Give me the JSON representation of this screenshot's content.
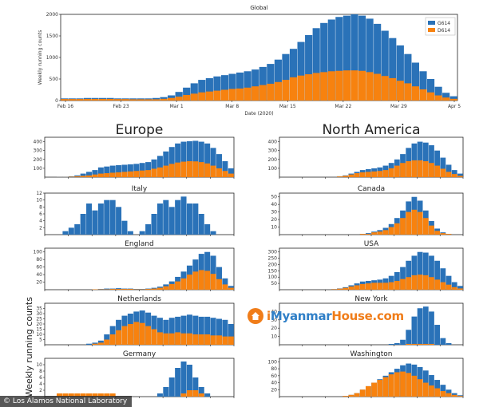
{
  "colors": {
    "g614": "#2a72b8",
    "d614": "#f7820f"
  },
  "ylabel_left": "Weekly running counts",
  "credit": "© Los Alamos National Laboratory",
  "watermark": {
    "i": "i",
    "myanmar": "Myanmar",
    "house": "House.com"
  },
  "chart_data": [
    {
      "type": "bar",
      "id": "global",
      "title": "Global",
      "xlabel": "Date (2020)",
      "ylabel": "Weekly running counts",
      "ylim": [
        0,
        2000
      ],
      "yticks": [
        "0",
        "500",
        "1000",
        "1500",
        "2000"
      ],
      "xticks": [
        "Feb 16",
        "Feb 23",
        "Mar 1",
        "Mar 8",
        "Mar 15",
        "Mar 22",
        "Mar 29",
        "Apr 5"
      ],
      "legend": [
        "G614",
        "D614"
      ],
      "legend_position": "top-right",
      "series": [
        {
          "values": [
            50,
            50,
            50,
            60,
            60,
            60,
            60,
            50,
            50,
            50,
            50,
            50,
            60,
            80,
            120,
            200,
            300,
            400,
            480,
            520,
            560,
            590,
            620,
            650,
            680,
            720,
            780,
            850,
            950,
            1080,
            1200,
            1360,
            1520,
            1680,
            1800,
            1880,
            1940,
            1970,
            2000,
            1970,
            1900,
            1780,
            1620,
            1450,
            1280,
            1080,
            880,
            680,
            500,
            320,
            180,
            100
          ]
        },
        {
          "values": [
            35,
            35,
            35,
            38,
            38,
            38,
            38,
            34,
            34,
            30,
            30,
            30,
            30,
            40,
            60,
            90,
            130,
            160,
            190,
            210,
            230,
            250,
            270,
            280,
            300,
            330,
            360,
            390,
            430,
            480,
            540,
            580,
            610,
            640,
            660,
            680,
            690,
            700,
            700,
            690,
            660,
            620,
            570,
            520,
            460,
            400,
            330,
            260,
            190,
            120,
            70,
            40
          ]
        }
      ]
    },
    {
      "type": "bar",
      "id": "europe",
      "title": "Europe",
      "ylim": [
        0,
        450
      ],
      "yticks": [
        "100",
        "200",
        "300",
        "400"
      ],
      "series": [
        {
          "values": [
            0,
            0,
            2,
            5,
            10,
            20,
            40,
            60,
            80,
            110,
            120,
            130,
            135,
            140,
            145,
            150,
            160,
            170,
            200,
            240,
            290,
            340,
            380,
            400,
            405,
            410,
            400,
            380,
            330,
            260,
            180,
            100
          ]
        },
        {
          "values": [
            0,
            0,
            1,
            2,
            5,
            10,
            15,
            20,
            30,
            40,
            45,
            50,
            55,
            60,
            65,
            70,
            75,
            80,
            95,
            110,
            130,
            150,
            165,
            175,
            180,
            178,
            170,
            155,
            130,
            100,
            70,
            40
          ]
        }
      ]
    },
    {
      "type": "bar",
      "id": "north-america",
      "title": "North America",
      "ylim": [
        0,
        450
      ],
      "yticks": [
        "100",
        "200",
        "300",
        "400"
      ],
      "series": [
        {
          "values": [
            0,
            0,
            0,
            0,
            0,
            0,
            0,
            0,
            0,
            0,
            10,
            20,
            40,
            60,
            80,
            90,
            100,
            110,
            130,
            160,
            200,
            260,
            330,
            380,
            400,
            390,
            360,
            300,
            220,
            140,
            80,
            40
          ]
        },
        {
          "values": [
            0,
            0,
            0,
            0,
            0,
            0,
            0,
            0,
            0,
            0,
            8,
            15,
            30,
            45,
            55,
            60,
            65,
            70,
            80,
            100,
            130,
            160,
            180,
            190,
            190,
            180,
            160,
            130,
            95,
            60,
            35,
            15
          ]
        }
      ]
    },
    {
      "type": "bar",
      "id": "italy",
      "title": "Italy",
      "ylim": [
        0,
        12
      ],
      "yticks": [
        "2",
        "4",
        "6",
        "8",
        "10",
        "12"
      ],
      "series": [
        {
          "values": [
            0,
            0,
            0,
            1,
            2,
            3,
            6,
            9,
            7,
            9,
            10,
            10,
            8,
            4,
            1,
            0,
            1,
            3,
            6,
            9,
            10,
            8,
            10,
            11,
            9,
            9,
            6,
            3,
            1,
            0,
            0,
            0
          ]
        },
        {
          "values": [
            0,
            0,
            0,
            0,
            0,
            0,
            0,
            0,
            0,
            0,
            0,
            0,
            0,
            0,
            0,
            0,
            0,
            0,
            0,
            0,
            0,
            0,
            0,
            0,
            0,
            0,
            0,
            0,
            0,
            0,
            0,
            0
          ]
        }
      ]
    },
    {
      "type": "bar",
      "id": "canada",
      "title": "Canada",
      "ylim": [
        0,
        55
      ],
      "yticks": [
        "10",
        "20",
        "30",
        "40",
        "50"
      ],
      "series": [
        {
          "values": [
            0,
            0,
            0,
            0,
            0,
            0,
            0,
            0,
            0,
            0,
            0,
            0,
            0,
            0,
            1,
            2,
            4,
            6,
            9,
            14,
            22,
            32,
            44,
            50,
            45,
            32,
            18,
            8,
            3,
            1,
            0,
            0
          ]
        },
        {
          "values": [
            0,
            0,
            0,
            0,
            0,
            0,
            0,
            0,
            0,
            0,
            0,
            0,
            0,
            0,
            1,
            1,
            3,
            4,
            6,
            10,
            15,
            22,
            30,
            33,
            30,
            22,
            12,
            5,
            2,
            1,
            0,
            0
          ]
        }
      ]
    },
    {
      "type": "bar",
      "id": "england",
      "title": "England",
      "ylim": [
        0,
        110
      ],
      "yticks": [
        "20",
        "40",
        "60",
        "80",
        "100"
      ],
      "series": [
        {
          "values": [
            0,
            0,
            0,
            0,
            0,
            0,
            0,
            0,
            1,
            2,
            3,
            3,
            4,
            3,
            3,
            2,
            2,
            3,
            5,
            8,
            14,
            22,
            34,
            48,
            64,
            80,
            95,
            100,
            90,
            60,
            30,
            10
          ]
        },
        {
          "values": [
            0,
            0,
            0,
            0,
            0,
            0,
            0,
            0,
            1,
            1,
            1,
            2,
            2,
            2,
            2,
            1,
            1,
            2,
            3,
            5,
            9,
            15,
            22,
            30,
            40,
            48,
            52,
            50,
            42,
            28,
            14,
            5
          ]
        }
      ]
    },
    {
      "type": "bar",
      "id": "usa",
      "title": "USA",
      "ylim": [
        0,
        330
      ],
      "yticks": [
        "50",
        "100",
        "150",
        "200",
        "250",
        "300"
      ],
      "series": [
        {
          "values": [
            0,
            0,
            0,
            0,
            0,
            0,
            0,
            0,
            0,
            5,
            10,
            20,
            35,
            50,
            65,
            70,
            75,
            80,
            90,
            110,
            140,
            180,
            230,
            270,
            300,
            295,
            270,
            230,
            170,
            110,
            60,
            30
          ]
        },
        {
          "values": [
            0,
            0,
            0,
            0,
            0,
            0,
            0,
            0,
            0,
            4,
            8,
            15,
            25,
            35,
            45,
            50,
            55,
            55,
            55,
            60,
            70,
            85,
            100,
            115,
            120,
            115,
            100,
            80,
            60,
            40,
            20,
            10
          ]
        }
      ]
    },
    {
      "type": "bar",
      "id": "netherlands",
      "title": "Netherlands",
      "ylim": [
        0,
        40
      ],
      "yticks": [
        "5",
        "10",
        "15",
        "20",
        "25",
        "30",
        "35"
      ],
      "series": [
        {
          "values": [
            0,
            0,
            0,
            0,
            0,
            0,
            0,
            1,
            2,
            4,
            10,
            18,
            24,
            28,
            30,
            32,
            33,
            31,
            28,
            26,
            24,
            26,
            27,
            28,
            29,
            28,
            27,
            27,
            26,
            25,
            24,
            20
          ]
        },
        {
          "values": [
            0,
            0,
            0,
            0,
            0,
            0,
            0,
            0,
            1,
            2,
            5,
            10,
            14,
            18,
            20,
            22,
            21,
            18,
            15,
            12,
            11,
            11,
            12,
            11,
            11,
            10,
            10,
            10,
            9,
            9,
            8,
            8
          ]
        }
      ]
    },
    {
      "type": "bar",
      "id": "new-york",
      "title": "New York",
      "ylim": [
        0,
        50
      ],
      "yticks": [
        "10",
        "20",
        "30",
        "40"
      ],
      "series": [
        {
          "values": [
            0,
            0,
            0,
            0,
            0,
            0,
            0,
            0,
            0,
            0,
            0,
            0,
            0,
            0,
            0,
            0,
            0,
            0,
            0,
            1,
            2,
            6,
            18,
            34,
            44,
            46,
            40,
            24,
            8,
            2,
            0,
            0
          ]
        },
        {
          "values": [
            0,
            0,
            0,
            0,
            0,
            0,
            0,
            0,
            0,
            0,
            0,
            0,
            0,
            0,
            0,
            0,
            0,
            0,
            0,
            0,
            0,
            0,
            1,
            1,
            1,
            1,
            1,
            0,
            0,
            0,
            0,
            0
          ]
        }
      ]
    },
    {
      "type": "bar",
      "id": "germany",
      "title": "Germany",
      "ylim": [
        0,
        12
      ],
      "yticks": [
        "2",
        "4",
        "6",
        "8",
        "10"
      ],
      "series": [
        {
          "values": [
            0,
            0,
            0,
            0,
            0,
            0,
            0,
            0,
            0,
            0,
            0,
            0,
            0,
            0,
            0,
            0,
            0,
            0,
            0,
            1,
            3,
            6,
            9,
            11,
            10,
            6,
            3,
            1,
            0,
            0,
            0,
            0
          ]
        },
        {
          "values": [
            0,
            0,
            1,
            1,
            1,
            1,
            1,
            1,
            1,
            1,
            1,
            1,
            0,
            0,
            0,
            0,
            0,
            0,
            0,
            0,
            0,
            0,
            0,
            1,
            2,
            2,
            1,
            0,
            0,
            0,
            0,
            0
          ]
        }
      ]
    },
    {
      "type": "bar",
      "id": "washington",
      "title": "Washington",
      "ylim": [
        0,
        110
      ],
      "yticks": [
        "20",
        "40",
        "60",
        "80",
        "100"
      ],
      "series": [
        {
          "values": [
            0,
            0,
            0,
            0,
            0,
            0,
            0,
            0,
            0,
            0,
            0,
            2,
            5,
            10,
            20,
            30,
            40,
            50,
            60,
            70,
            80,
            90,
            95,
            92,
            85,
            75,
            62,
            48,
            34,
            20,
            10,
            4
          ]
        },
        {
          "values": [
            0,
            0,
            0,
            0,
            0,
            0,
            0,
            0,
            0,
            0,
            0,
            2,
            5,
            10,
            20,
            30,
            40,
            48,
            56,
            64,
            70,
            72,
            68,
            60,
            50,
            40,
            32,
            24,
            16,
            10,
            5,
            2
          ]
        }
      ]
    }
  ]
}
